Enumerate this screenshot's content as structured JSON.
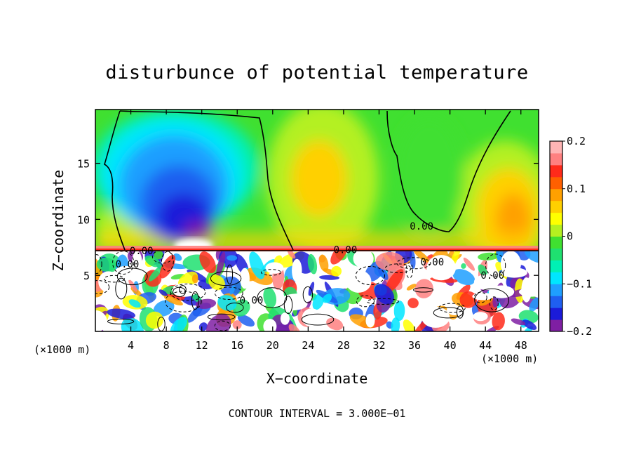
{
  "chart_data": {
    "type": "heatmap",
    "title": "disturbunce of potential temperature",
    "xlabel": "X−coordinate",
    "ylabel": "Z−coordinate",
    "x_unit_left": "(×1000 m)",
    "x_unit_right": "(×1000 m)",
    "footer": "CONTOUR INTERVAL = 3.000E−01",
    "xlim": [
      0,
      50
    ],
    "ylim": [
      0,
      19.8
    ],
    "x_ticks": [
      4,
      8,
      12,
      16,
      20,
      24,
      28,
      32,
      36,
      40,
      44,
      48
    ],
    "x_tick_labels": [
      "4",
      "8",
      "12",
      "16",
      "20",
      "24",
      "28",
      "32",
      "36",
      "40",
      "44",
      "48"
    ],
    "y_ticks": [
      5,
      10,
      15
    ],
    "y_tick_labels": [
      "5",
      "10",
      "15"
    ],
    "colorbar": {
      "range": [
        -0.2,
        0.2
      ],
      "tick_values": [
        0.2,
        0.1,
        0,
        -0.1,
        -0.2
      ],
      "tick_labels": [
        "0.2",
        "0.1",
        "0",
        "−0.1",
        "−0.2"
      ],
      "colors": [
        "#7f1fa3",
        "#1b1bd9",
        "#1f5ff0",
        "#1f9fff",
        "#00e6ff",
        "#00f0b4",
        "#1fe070",
        "#40e030",
        "#b4f020",
        "#ffff00",
        "#ffd000",
        "#ffa000",
        "#ff6000",
        "#ff2a1a",
        "#ff8080",
        "#ffb4b4"
      ]
    },
    "contour_labels": [
      {
        "text": "0.00",
        "x": 5.2,
        "z": 7.2
      },
      {
        "text": "0.00",
        "x": 3.6,
        "z": 6.0
      },
      {
        "text": "0.00",
        "x": 28.2,
        "z": 7.3
      },
      {
        "text": "0.00",
        "x": 36.8,
        "z": 9.4
      },
      {
        "text": "0.00",
        "x": 17.6,
        "z": 2.8
      },
      {
        "text": "0.00",
        "x": 38.0,
        "z": 6.2
      },
      {
        "text": "0.00",
        "x": 44.8,
        "z": 5.0
      }
    ],
    "fields": {
      "upper_layer": {
        "z_range": [
          7.3,
          19.8
        ],
        "cold_anomaly_center": {
          "x": 10.5,
          "z": 10.5,
          "value": -0.2
        },
        "warm_anomaly_centers": [
          {
            "x": 25.5,
            "z": 14.0,
            "value": 0.1
          },
          {
            "x": 45.5,
            "z": 11.0,
            "value": 0.12
          }
        ],
        "zero_contour": "encloses cold region x 1–20 and bounds trough x 33–47"
      },
      "lower_layer": {
        "z_range": [
          0,
          7.3
        ],
        "pattern": "turbulent mixed anomalies ±0.2"
      }
    }
  }
}
